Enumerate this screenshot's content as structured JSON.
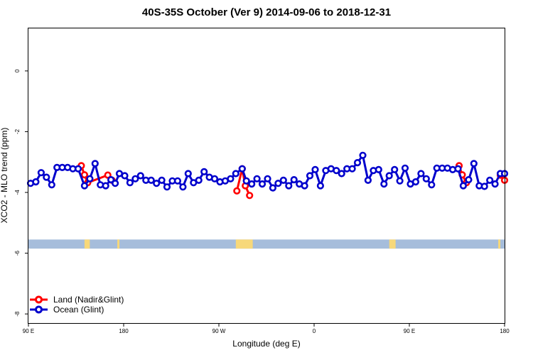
{
  "chart_data": {
    "type": "line",
    "title": "40S-35S October (Ver 9)   2014-09-06 to 2018-12-31",
    "xlabel": "Longitude (deg E)",
    "ylabel": "XCO2 - MLO trend (ppm)",
    "xlim": [
      90,
      540
    ],
    "ylim": [
      -8.3,
      1.4
    ],
    "x_ticks": [
      {
        "value": 90,
        "label": "90 E"
      },
      {
        "value": 180,
        "label": "180"
      },
      {
        "value": 270,
        "label": "90 W"
      },
      {
        "value": 360,
        "label": "0"
      },
      {
        "value": 450,
        "label": "90 E"
      },
      {
        "value": 540,
        "label": "180"
      }
    ],
    "y_ticks": [
      {
        "value": 0,
        "label": "0"
      },
      {
        "value": -2,
        "label": "-2"
      },
      {
        "value": -4,
        "label": "-4"
      },
      {
        "value": -6,
        "label": "-6"
      },
      {
        "value": -8,
        "label": "-8"
      }
    ],
    "legend": {
      "placement": "bottom-left"
    },
    "land_strip": {
      "y_top": -5.55,
      "y_bottom": -5.85,
      "ocean_color": "#a6bddb",
      "land_color": "#f7d87a",
      "land_x": [
        [
          143,
          148
        ],
        [
          174,
          176
        ],
        [
          286,
          302
        ],
        [
          431,
          437
        ],
        [
          534,
          536
        ]
      ]
    },
    "series": [
      {
        "name": "Land (Nadir&Glint)",
        "color": "#ff0000",
        "segments": [
          [
            [
              140,
              -3.12
            ],
            [
              143,
              -3.42
            ],
            [
              146,
              -3.68
            ],
            [
              165,
              -3.43
            ],
            [
              169,
              -3.6
            ]
          ],
          [
            [
              287,
              -3.95
            ],
            [
              292,
              -3.22
            ],
            [
              295,
              -3.78
            ],
            [
              299,
              -4.1
            ]
          ],
          [
            [
              497,
              -3.12
            ],
            [
              500,
              -3.42
            ],
            [
              504,
              -3.68
            ]
          ],
          [
            [
              536,
              -3.43
            ],
            [
              540,
              -3.6
            ]
          ]
        ]
      },
      {
        "name": "Ocean (Glint)",
        "color": "#0000cc",
        "segments": [
          [
            [
              92,
              -3.7
            ],
            [
              97,
              -3.65
            ],
            [
              102,
              -3.35
            ],
            [
              107,
              -3.5
            ],
            [
              112,
              -3.75
            ],
            [
              117,
              -3.18
            ],
            [
              122,
              -3.18
            ],
            [
              127,
              -3.18
            ],
            [
              132,
              -3.22
            ],
            [
              137,
              -3.22
            ],
            [
              143,
              -3.78
            ],
            [
              148,
              -3.55
            ],
            [
              153,
              -3.05
            ],
            [
              158,
              -3.75
            ],
            [
              163,
              -3.78
            ],
            [
              168,
              -3.58
            ],
            [
              172,
              -3.7
            ],
            [
              176,
              -3.38
            ],
            [
              181,
              -3.45
            ],
            [
              186,
              -3.68
            ],
            [
              191,
              -3.55
            ],
            [
              196,
              -3.45
            ],
            [
              201,
              -3.6
            ],
            [
              206,
              -3.6
            ],
            [
              211,
              -3.7
            ],
            [
              216,
              -3.6
            ],
            [
              221,
              -3.82
            ],
            [
              226,
              -3.62
            ],
            [
              231,
              -3.62
            ],
            [
              236,
              -3.82
            ],
            [
              241,
              -3.38
            ],
            [
              246,
              -3.68
            ],
            [
              251,
              -3.6
            ],
            [
              256,
              -3.32
            ],
            [
              261,
              -3.5
            ],
            [
              266,
              -3.55
            ],
            [
              271,
              -3.65
            ],
            [
              276,
              -3.62
            ],
            [
              281,
              -3.55
            ],
            [
              286,
              -3.38
            ],
            [
              292,
              -3.22
            ],
            [
              296,
              -3.62
            ],
            [
              301,
              -3.72
            ],
            [
              306,
              -3.55
            ],
            [
              311,
              -3.72
            ],
            [
              316,
              -3.55
            ],
            [
              321,
              -3.85
            ],
            [
              326,
              -3.7
            ],
            [
              331,
              -3.6
            ],
            [
              336,
              -3.78
            ],
            [
              341,
              -3.58
            ],
            [
              346,
              -3.72
            ],
            [
              351,
              -3.78
            ],
            [
              356,
              -3.45
            ],
            [
              361,
              -3.25
            ],
            [
              366,
              -3.78
            ],
            [
              371,
              -3.28
            ],
            [
              376,
              -3.22
            ],
            [
              381,
              -3.28
            ],
            [
              386,
              -3.38
            ],
            [
              391,
              -3.22
            ],
            [
              396,
              -3.22
            ],
            [
              401,
              -3.02
            ],
            [
              406,
              -2.78
            ],
            [
              411,
              -3.6
            ],
            [
              416,
              -3.28
            ],
            [
              421,
              -3.25
            ],
            [
              426,
              -3.72
            ],
            [
              431,
              -3.45
            ],
            [
              436,
              -3.25
            ],
            [
              441,
              -3.62
            ],
            [
              446,
              -3.2
            ],
            [
              451,
              -3.72
            ],
            [
              456,
              -3.65
            ],
            [
              461,
              -3.38
            ],
            [
              466,
              -3.55
            ],
            [
              471,
              -3.75
            ],
            [
              476,
              -3.2
            ],
            [
              481,
              -3.2
            ],
            [
              486,
              -3.2
            ],
            [
              491,
              -3.25
            ],
            [
              496,
              -3.22
            ],
            [
              501,
              -3.78
            ],
            [
              506,
              -3.58
            ],
            [
              511,
              -3.05
            ],
            [
              516,
              -3.78
            ],
            [
              521,
              -3.8
            ],
            [
              526,
              -3.6
            ],
            [
              531,
              -3.72
            ],
            [
              536,
              -3.38
            ],
            [
              540,
              -3.38
            ]
          ]
        ]
      }
    ]
  }
}
